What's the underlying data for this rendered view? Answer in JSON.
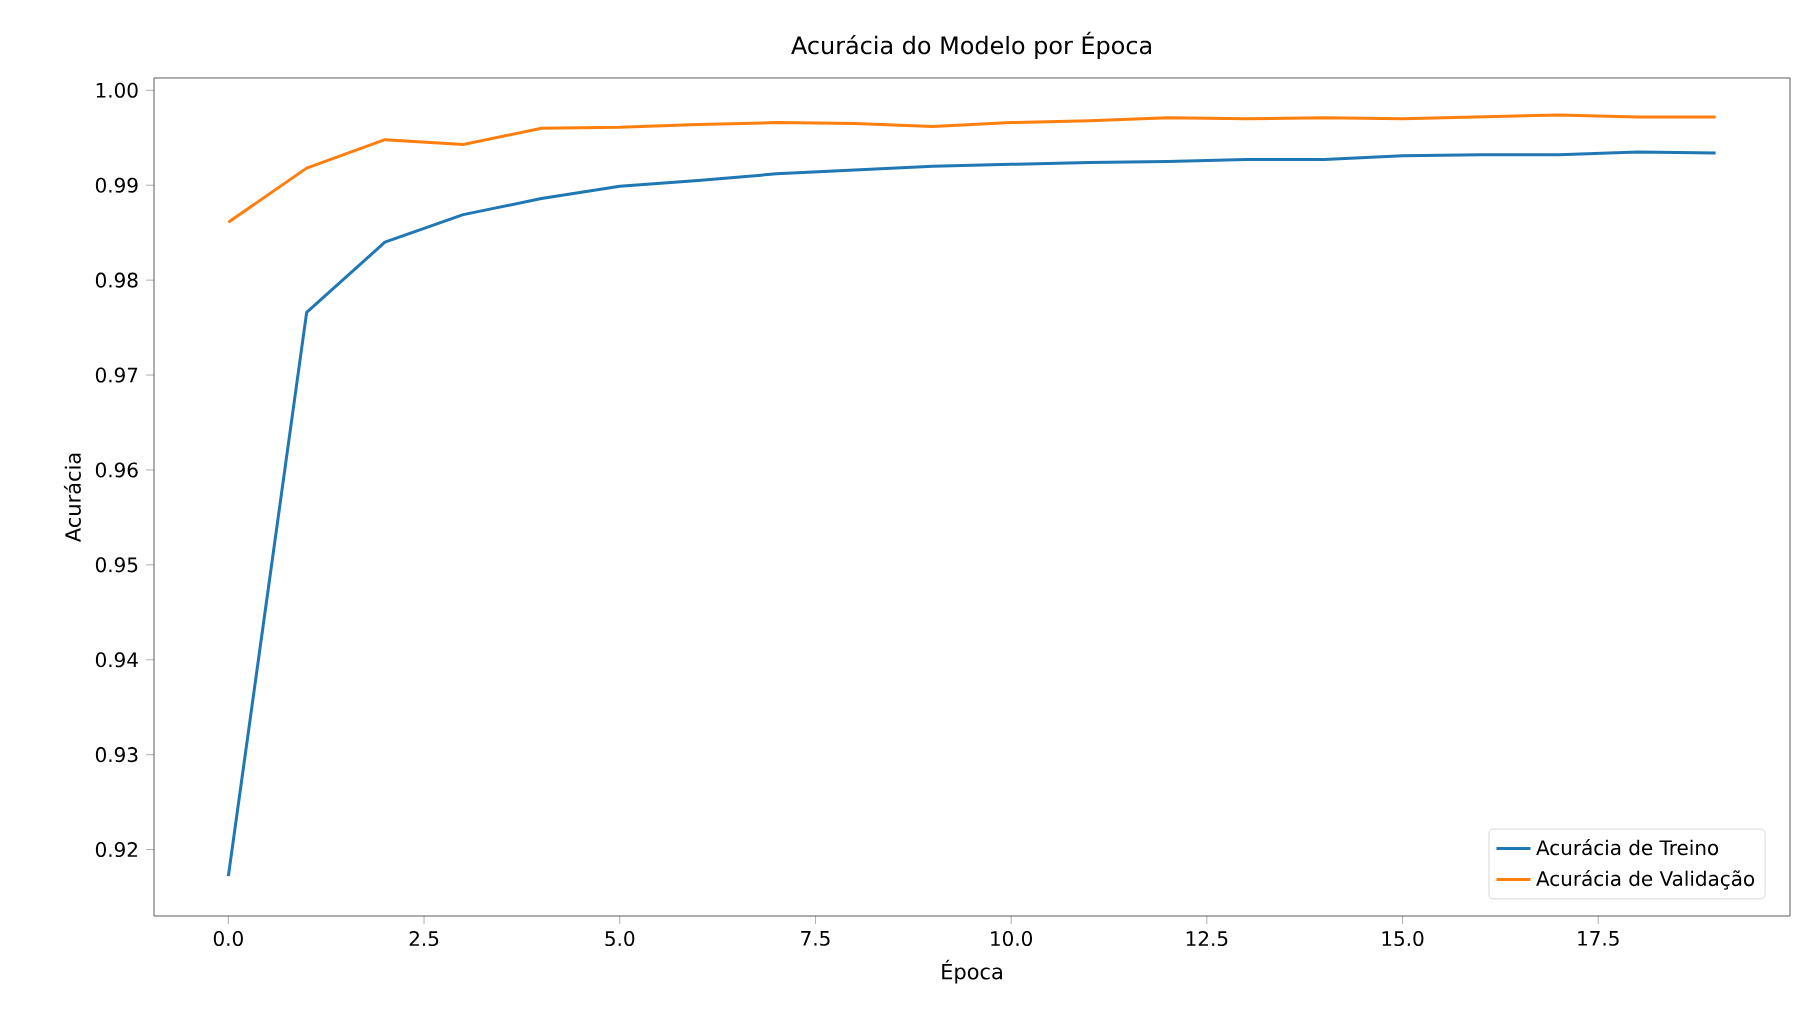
{
  "chart_data": {
    "type": "line",
    "title": "Acurácia do Modelo por Época",
    "xlabel": "Época",
    "ylabel": "Acurácia",
    "x": [
      0,
      1,
      2,
      3,
      4,
      5,
      6,
      7,
      8,
      9,
      10,
      11,
      12,
      13,
      14,
      15,
      16,
      17,
      18,
      19
    ],
    "series": [
      {
        "name": "Acurácia de Treino",
        "color": "#1f77b4",
        "values": [
          0.9172,
          0.9766,
          0.984,
          0.9869,
          0.9886,
          0.9899,
          0.9905,
          0.9912,
          0.9916,
          0.992,
          0.9922,
          0.9924,
          0.9925,
          0.9927,
          0.9927,
          0.9931,
          0.9932,
          0.9932,
          0.9935,
          0.9934
        ]
      },
      {
        "name": "Acurácia de Validação",
        "color": "#ff7f0e",
        "values": [
          0.9861,
          0.9918,
          0.9948,
          0.9943,
          0.996,
          0.9961,
          0.9964,
          0.9966,
          0.9965,
          0.9962,
          0.9966,
          0.9968,
          0.9971,
          0.997,
          0.9971,
          0.997,
          0.9972,
          0.9974,
          0.9972,
          0.9972
        ]
      }
    ],
    "xlim": [
      -0.95,
      19.95
    ],
    "ylim": [
      0.913,
      1.0013
    ],
    "xticks": [
      {
        "value": 0,
        "label": "0.0"
      },
      {
        "value": 2.5,
        "label": "2.5"
      },
      {
        "value": 5,
        "label": "5.0"
      },
      {
        "value": 7.5,
        "label": "7.5"
      },
      {
        "value": 10,
        "label": "10.0"
      },
      {
        "value": 12.5,
        "label": "12.5"
      },
      {
        "value": 15,
        "label": "15.0"
      },
      {
        "value": 17.5,
        "label": "17.5"
      }
    ],
    "yticks": [
      0.92,
      0.93,
      0.94,
      0.95,
      0.96,
      0.97,
      0.98,
      0.99,
      {
        "value": 1.0,
        "label": "1.00"
      }
    ],
    "legend": "bottom right",
    "grid": false,
    "marker": "none",
    "line_style": "solid"
  }
}
